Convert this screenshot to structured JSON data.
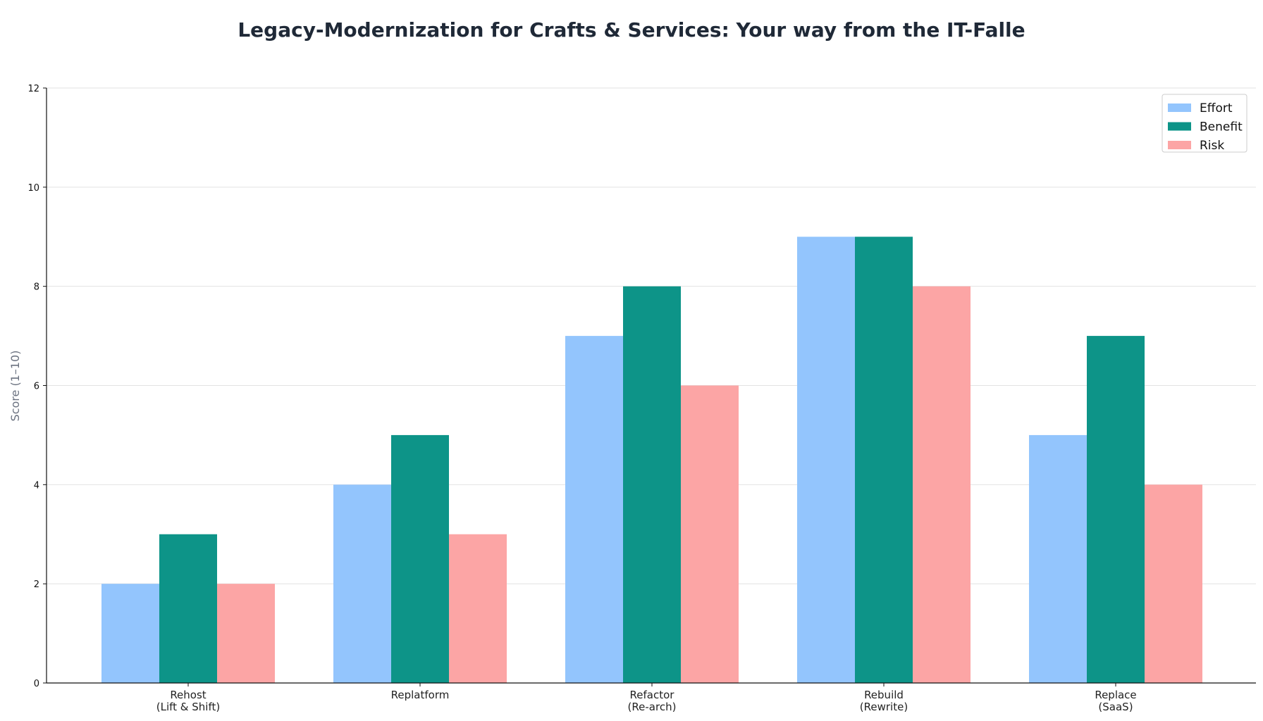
{
  "chart_data": {
    "type": "bar",
    "title": "Legacy-Modernization for Crafts & Services: Your way from the IT-Falle",
    "xlabel": "",
    "ylabel": "Score (1–10)",
    "ylim": [
      0,
      12
    ],
    "yticks": [
      0,
      2,
      4,
      6,
      8,
      10,
      12
    ],
    "grid": true,
    "legend_position": "top-right",
    "categories": [
      [
        "Rehost",
        "(Lift & Shift)"
      ],
      [
        "Replatform"
      ],
      [
        "Refactor",
        "(Re-arch)"
      ],
      [
        "Rebuild",
        "(Rewrite)"
      ],
      [
        "Replace",
        "(SaaS)"
      ]
    ],
    "series": [
      {
        "name": "Effort",
        "color": "#93c5fd",
        "values": [
          2,
          4,
          7,
          9,
          5
        ]
      },
      {
        "name": "Benefit",
        "color": "#0d9488",
        "values": [
          3,
          5,
          8,
          9,
          7
        ]
      },
      {
        "name": "Risk",
        "color": "#fca5a5",
        "values": [
          2,
          3,
          6,
          8,
          4
        ]
      }
    ]
  }
}
